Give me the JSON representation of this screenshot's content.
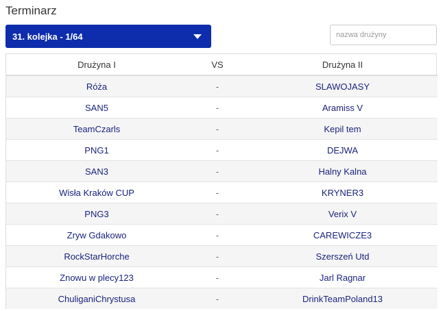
{
  "page": {
    "title": "Terminarz"
  },
  "round_selector": {
    "selected": "31. kolejka - 1/64"
  },
  "search": {
    "placeholder": "nazwa drużyny",
    "value": ""
  },
  "table": {
    "headers": [
      "Drużyna I",
      "VS",
      "Drużyna II"
    ],
    "rows": [
      {
        "team1": "Róża",
        "vs": "-",
        "team2": "SLAWOJASY"
      },
      {
        "team1": "SAN5",
        "vs": "-",
        "team2": "Aramiss V"
      },
      {
        "team1": "TeamCzarls",
        "vs": "-",
        "team2": "Kepil tem"
      },
      {
        "team1": "PNG1",
        "vs": "-",
        "team2": "DEJWA"
      },
      {
        "team1": "SAN3",
        "vs": "-",
        "team2": "Halny Kalna"
      },
      {
        "team1": "Wisła Kraków CUP",
        "vs": "-",
        "team2": "KRYNER3"
      },
      {
        "team1": "PNG3",
        "vs": "-",
        "team2": "Verix V"
      },
      {
        "team1": "Zryw Gdakowo",
        "vs": "-",
        "team2": "CAREWICZE3"
      },
      {
        "team1": "RockStarHorche",
        "vs": "-",
        "team2": "Szerszeń Utd"
      },
      {
        "team1": "Znowu w plecy123",
        "vs": "-",
        "team2": "Jarl Ragnar"
      },
      {
        "team1": "ChuliganiChrystusa",
        "vs": "-",
        "team2": "DrinkTeamPoland13"
      }
    ]
  },
  "colors": {
    "accent": "#0d2dac",
    "team_link": "#1a237e",
    "row_stripe": "#f5f5f5"
  }
}
